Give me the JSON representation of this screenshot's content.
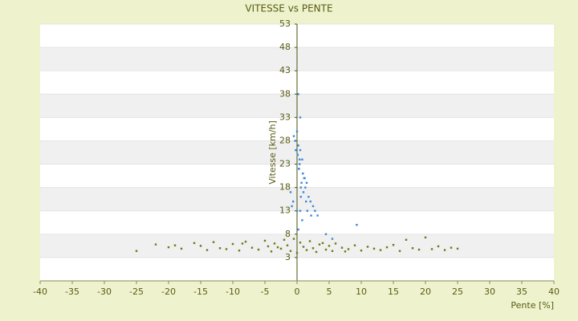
{
  "chart_data": {
    "type": "scatter",
    "title": "VITESSE vs PENTE",
    "x_label": "Pente [%]",
    "y_label": "Vitesse [km/h]",
    "xlim": [
      -40,
      40
    ],
    "xticks": [
      -40,
      -35,
      -30,
      -25,
      -20,
      -15,
      -10,
      -5,
      0,
      5,
      10,
      15,
      20,
      25,
      30,
      35,
      40
    ],
    "ylim": [
      -2,
      53
    ],
    "yticks": [
      3,
      8,
      13,
      18,
      23,
      28,
      33,
      38,
      43,
      48,
      53
    ],
    "grid": true,
    "series": [
      {
        "color": "#3b88d8",
        "x": [
          0.2,
          0.5,
          0.8,
          -0.3,
          0.1,
          0.4,
          0.9,
          1.2,
          1.5,
          0.3,
          -0.5,
          0.6,
          1.0,
          1.8,
          2.1,
          2.5,
          0.0,
          -0.2,
          0.7,
          1.3,
          2.8,
          3.2,
          0.4,
          1.1,
          -0.6,
          -0.8,
          0.2,
          0.5,
          1.6,
          2.2,
          0.9,
          -1.0,
          0.3,
          0.1,
          0.6,
          1.4,
          0.0,
          0.5,
          9.3,
          4.5,
          5.5,
          0.2,
          0.8
        ],
        "y": [
          27,
          26,
          24,
          28,
          25,
          23,
          21,
          20,
          19,
          22,
          29,
          18,
          17,
          16,
          15,
          14,
          30,
          26,
          19,
          18,
          13,
          12,
          24,
          20,
          15,
          14,
          38,
          33,
          13,
          12,
          21,
          17,
          22,
          25,
          16,
          15,
          13,
          13,
          10,
          8,
          7,
          9,
          11
        ]
      },
      {
        "color": "#6b7a14",
        "x": [
          -25,
          -22,
          -20,
          -18,
          -16,
          -15,
          -14,
          -13,
          -12,
          -11,
          -10,
          -9,
          -8,
          -7,
          -6,
          -5,
          -4.5,
          -4,
          -3.5,
          -3,
          -2.5,
          -2,
          -1.5,
          -1,
          -0.5,
          0,
          0.5,
          1,
          1.5,
          2,
          2.5,
          3,
          3.5,
          4,
          4.5,
          5,
          5.5,
          6,
          7,
          8,
          9,
          10,
          11,
          12,
          13,
          14,
          15,
          16,
          17,
          18,
          19,
          20,
          21,
          22,
          23,
          24,
          25,
          -19,
          -8.5,
          7.5
        ],
        "y": [
          4.4,
          5.8,
          5.2,
          4.9,
          6.1,
          5.5,
          4.6,
          6.3,
          5.0,
          4.8,
          5.9,
          4.5,
          6.4,
          5.1,
          4.7,
          6.6,
          5.4,
          4.3,
          6.0,
          5.2,
          4.9,
          6.8,
          5.6,
          4.4,
          7.0,
          4.0,
          6.2,
          5.3,
          4.6,
          6.5,
          5.0,
          4.2,
          5.8,
          6.1,
          4.7,
          5.5,
          4.4,
          6.0,
          5.1,
          4.8,
          5.6,
          4.5,
          5.3,
          4.9,
          4.6,
          5.2,
          5.7,
          4.4,
          6.8,
          5.0,
          4.7,
          7.3,
          4.8,
          5.4,
          4.6,
          5.1,
          4.9,
          5.6,
          6.0,
          4.3
        ]
      }
    ]
  }
}
